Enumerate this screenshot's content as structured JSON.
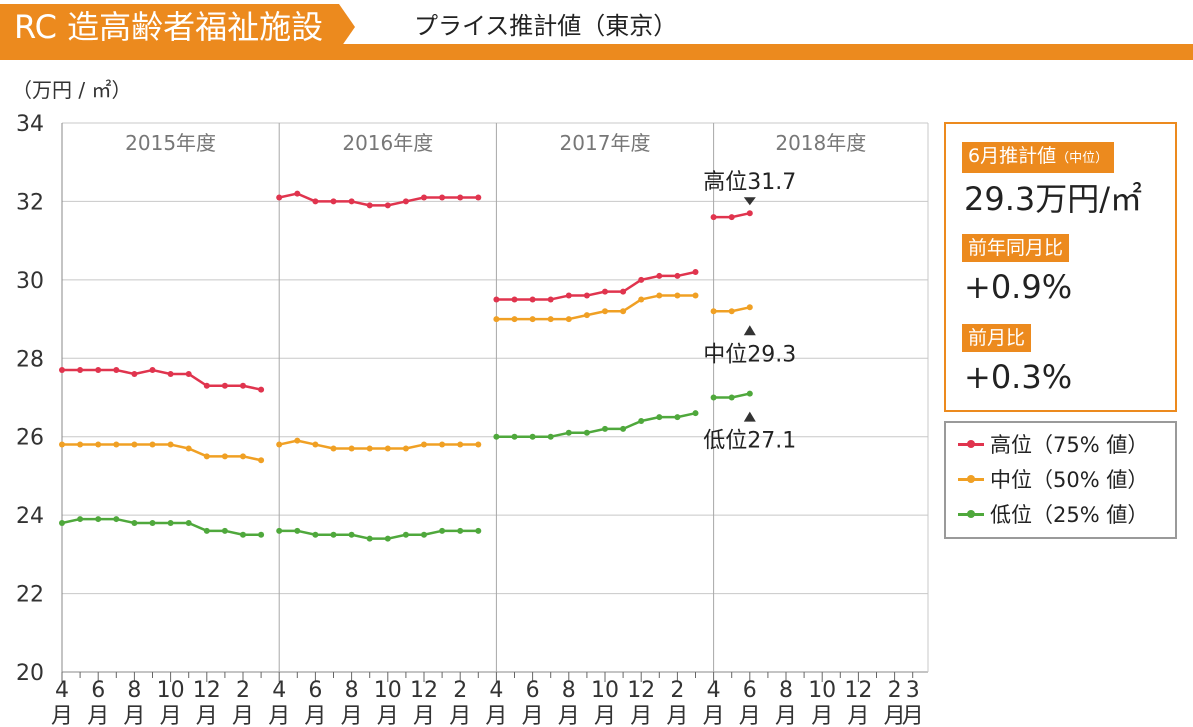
{
  "header": {
    "title": "RC 造高齢者福祉施設",
    "subtitle": "プライス推計値（東京）",
    "unit": "（万円 / ㎡）"
  },
  "info": {
    "estimate_label": "6月推計値",
    "estimate_label_small": "（中位）",
    "estimate_value": "29.3万円/㎡",
    "yoy_label": "前年同月比",
    "yoy_value": "+0.9%",
    "mom_label": "前月比",
    "mom_value": "+0.3%"
  },
  "colors": {
    "high": "#e0344e",
    "mid": "#f0a024",
    "low": "#4fa83c",
    "accent": "#ec8a1e",
    "grid": "#c8c8c8"
  },
  "chart_data": {
    "type": "line",
    "ylim": [
      20,
      34
    ],
    "yticks": [
      20,
      22,
      24,
      26,
      28,
      30,
      32,
      34
    ],
    "fiscal_years": [
      "2015年度",
      "2016年度",
      "2017年度",
      "2018年度"
    ],
    "x_tick_nums": [
      "4",
      "6",
      "8",
      "10",
      "12",
      "2",
      "4",
      "6",
      "8",
      "10",
      "12",
      "2",
      "4",
      "6",
      "8",
      "10",
      "12",
      "2",
      "4",
      "6",
      "8",
      "10",
      "12",
      "2",
      "3"
    ],
    "x_tick_unit": "月",
    "series": [
      {
        "name": "高位（75% 値）",
        "key": "high",
        "segments": [
          [
            27.7,
            27.7,
            27.7,
            27.7,
            27.6,
            27.7,
            27.6,
            27.6,
            27.3,
            27.3,
            27.3,
            27.2
          ],
          [
            32.1,
            32.2,
            32.0,
            32.0,
            32.0,
            31.9,
            31.9,
            32.0,
            32.1,
            32.1,
            32.1,
            32.1
          ],
          [
            29.5,
            29.5,
            29.5,
            29.5,
            29.6,
            29.6,
            29.7,
            29.7,
            30.0,
            30.1,
            30.1,
            30.2
          ],
          [
            31.6,
            31.6,
            31.7
          ]
        ]
      },
      {
        "name": "中位（50% 値）",
        "key": "mid",
        "segments": [
          [
            25.8,
            25.8,
            25.8,
            25.8,
            25.8,
            25.8,
            25.8,
            25.7,
            25.5,
            25.5,
            25.5,
            25.4
          ],
          [
            25.8,
            25.9,
            25.8,
            25.7,
            25.7,
            25.7,
            25.7,
            25.7,
            25.8,
            25.8,
            25.8,
            25.8
          ],
          [
            29.0,
            29.0,
            29.0,
            29.0,
            29.0,
            29.1,
            29.2,
            29.2,
            29.5,
            29.6,
            29.6,
            29.6
          ],
          [
            29.2,
            29.2,
            29.3
          ]
        ]
      },
      {
        "name": "低位（25% 値）",
        "key": "low",
        "segments": [
          [
            23.8,
            23.9,
            23.9,
            23.9,
            23.8,
            23.8,
            23.8,
            23.8,
            23.6,
            23.6,
            23.5,
            23.5
          ],
          [
            23.6,
            23.6,
            23.5,
            23.5,
            23.5,
            23.4,
            23.4,
            23.5,
            23.5,
            23.6,
            23.6,
            23.6
          ],
          [
            26.0,
            26.0,
            26.0,
            26.0,
            26.1,
            26.1,
            26.2,
            26.2,
            26.4,
            26.5,
            26.5,
            26.6
          ],
          [
            27.0,
            27.0,
            27.1
          ]
        ]
      }
    ],
    "annotations": [
      {
        "text": "高位31.7",
        "series": "high",
        "value": 31.7,
        "pointer": "down"
      },
      {
        "text": "中位29.3",
        "series": "mid",
        "value": 29.3,
        "pointer": "up"
      },
      {
        "text": "低位27.1",
        "series": "low",
        "value": 27.1,
        "pointer": "up"
      }
    ]
  }
}
